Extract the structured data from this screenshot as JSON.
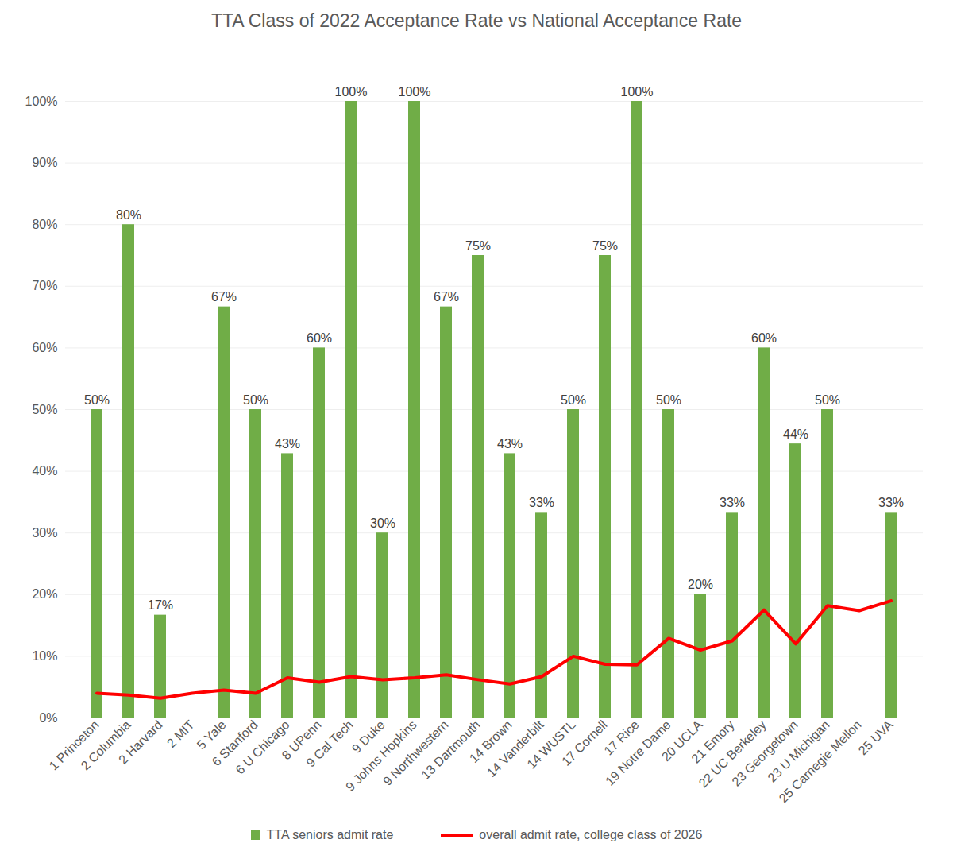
{
  "chart_data": {
    "type": "bar",
    "title": "TTA Class of 2022 Acceptance Rate vs National Acceptance Rate",
    "categories": [
      "1 Princeton",
      "2 Columbia",
      "2 Harvard",
      "2 MIT",
      "5 Yale",
      "6 Stanford",
      "6 U Chicago",
      "8 UPenn",
      "9 Cal Tech",
      "9 Duke",
      "9 Johns Hopkins",
      "9 Northwestern",
      "13 Dartmouth",
      "14 Brown",
      "14 Vanderbilt",
      "14 WUSTL",
      "17 Cornell",
      "17 Rice",
      "19 Notre Dame",
      "20 UCLA",
      "21 Emory",
      "22 UC Berkeley",
      "23 Georgetown",
      "23 U Michigan",
      "25 Carnegie Mellon",
      "25 UVA"
    ],
    "series": [
      {
        "name": "TTA seniors admit rate",
        "type": "bar",
        "color": "#70ad47",
        "values": [
          50,
          80,
          16.67,
          null,
          66.67,
          50,
          42.86,
          60,
          100,
          30,
          100,
          66.67,
          75,
          42.86,
          33.33,
          50,
          75,
          100,
          50,
          20,
          33.33,
          60,
          44.44,
          50,
          null,
          33.33
        ],
        "value_labels": [
          "50%",
          "80%",
          "17%",
          null,
          "67%",
          "50%",
          "43%",
          "60%",
          "100%",
          "30%",
          "100%",
          "67%",
          "75%",
          "43%",
          "33%",
          "50%",
          "75%",
          "100%",
          "50%",
          "20%",
          "33%",
          "60%",
          "44%",
          "50%",
          null,
          "33%"
        ]
      },
      {
        "name": "overall admit rate, college class of 2026",
        "type": "line",
        "color": "#ff0000",
        "values": [
          4,
          3.7,
          3.2,
          4,
          4.5,
          4,
          6.5,
          5.8,
          6.7,
          6.2,
          6.5,
          7,
          6.2,
          5.5,
          6.7,
          10,
          8.7,
          8.6,
          12.9,
          11,
          12.5,
          17.5,
          12,
          18.2,
          17.4,
          19
        ]
      }
    ],
    "ylim": [
      0,
      100
    ],
    "yticks": [
      {
        "value": 0,
        "label": "0%"
      },
      {
        "value": 10,
        "label": "10%"
      },
      {
        "value": 20,
        "label": "20%"
      },
      {
        "value": 30,
        "label": "30%"
      },
      {
        "value": 40,
        "label": "40%"
      },
      {
        "value": 50,
        "label": "50%"
      },
      {
        "value": 60,
        "label": "60%"
      },
      {
        "value": 70,
        "label": "70%"
      },
      {
        "value": 80,
        "label": "80%"
      },
      {
        "value": 90,
        "label": "90%"
      },
      {
        "value": 100,
        "label": "100%"
      }
    ],
    "grid": true,
    "data_labels": true,
    "legend": "bottom"
  }
}
